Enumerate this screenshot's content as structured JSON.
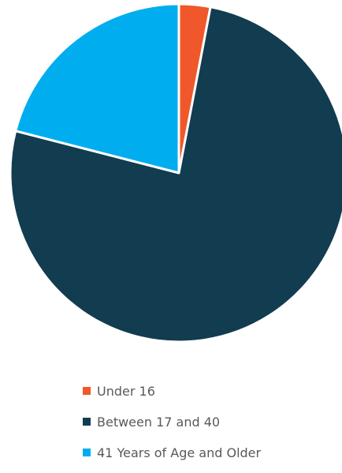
{
  "chart_data": {
    "type": "pie",
    "title": "",
    "slices": [
      {
        "label": "Under 16",
        "value": 3,
        "color": "#F0572A"
      },
      {
        "label": "Between 17 and 40",
        "value": 76,
        "color": "#123C50"
      },
      {
        "label": "41 Years of Age and Older",
        "value": 21,
        "color": "#00AEEF"
      }
    ],
    "legend_position": "bottom"
  }
}
